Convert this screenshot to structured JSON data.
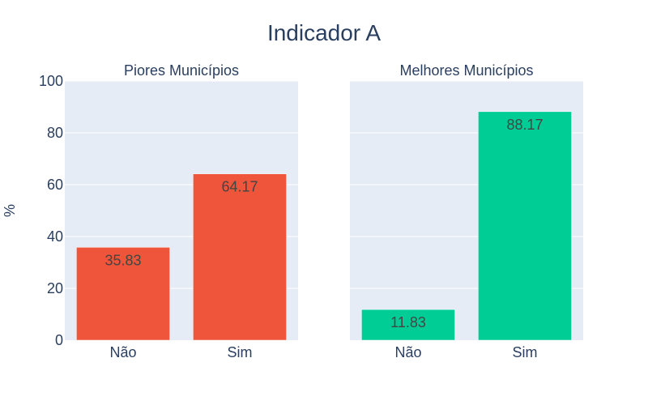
{
  "title": "Indicador A",
  "ylabel": "%",
  "colors": {
    "plot_bg": "#e5ecf6",
    "grid": "#ffffff",
    "text": "#2a3f5f",
    "bar_label": "#444444"
  },
  "chart_data": [
    {
      "type": "bar",
      "title": "Piores Municípios",
      "categories": [
        "Não",
        "Sim"
      ],
      "values": [
        35.83,
        64.17
      ],
      "value_labels": [
        "35.83",
        "64.17"
      ],
      "color": "#ef553b",
      "ylim": [
        0,
        100
      ],
      "yticks": [
        0,
        20,
        40,
        60,
        80,
        100
      ],
      "ytick_labels": [
        "0",
        "20",
        "40",
        "60",
        "80",
        "100"
      ],
      "grid": true
    },
    {
      "type": "bar",
      "title": "Melhores Municípios",
      "categories": [
        "Não",
        "Sim"
      ],
      "values": [
        11.83,
        88.17
      ],
      "value_labels": [
        "11.83",
        "88.17"
      ],
      "color": "#00cc96",
      "ylim": [
        0,
        100
      ],
      "yticks": [
        0,
        20,
        40,
        60,
        80,
        100
      ],
      "grid": true
    }
  ]
}
